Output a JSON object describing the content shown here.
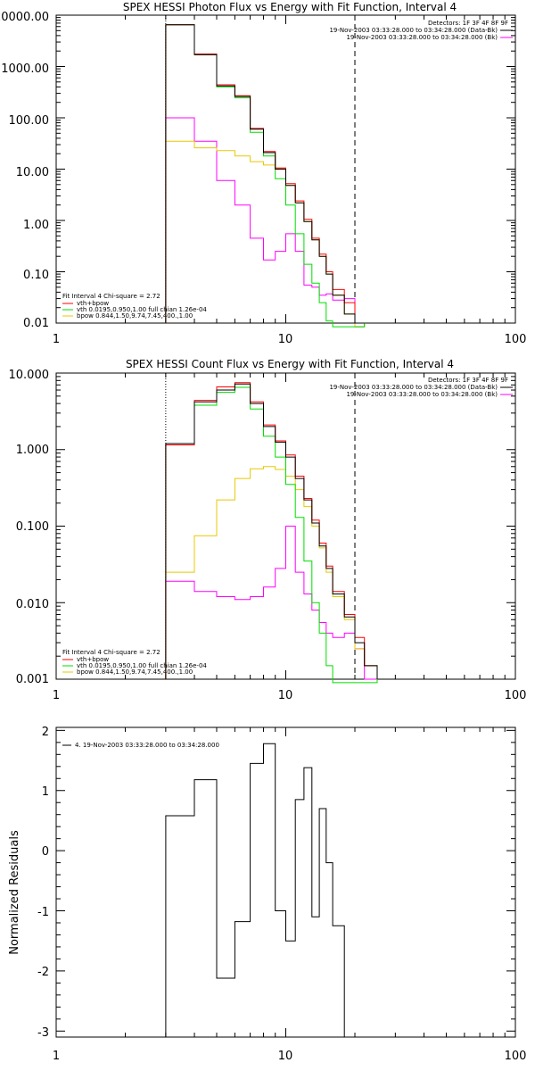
{
  "colors": {
    "total": "#000000",
    "data": "#ff0000",
    "vth": "#00dd00",
    "bpow": "#e8c800",
    "bk": "#ff00ff"
  },
  "chart_data": [
    {
      "type": "line",
      "scale": "log-log",
      "title": "SPEX HESSI Photon Flux vs Energy with Fit Function, Interval 4",
      "xlim": [
        1,
        100
      ],
      "ylim": [
        0.01,
        10000
      ],
      "x_ticks": [
        "1",
        "10",
        "100"
      ],
      "y_ticks": [
        "0.01",
        "0.10",
        "1.00",
        "10.00",
        "100.00",
        "1000.00",
        "10000.00"
      ],
      "header_lines": [
        "Detectors: 1F 3F 4F 8F 9F",
        "19-Nov-2003 03:33:28.000 to 03:34:28.000 (Data-Bk)",
        "19-Nov-2003 03:33:28.000 to 03:34:28.000 (Bk)"
      ],
      "fit_title": "Fit Interval 4    Chi-square = 2.72",
      "legend": [
        "vth+bpow",
        "vth 0.0195,0.950,1.00  full chian 1.26e-04",
        "bpow 0.844,1.50,9.74,7.45,400.,1.00"
      ],
      "vlines": [
        3,
        20
      ],
      "edges": [
        3,
        4,
        5,
        6,
        7,
        8,
        9,
        10,
        11,
        12,
        13,
        14,
        15,
        16,
        18,
        20,
        22
      ],
      "series": [
        {
          "key": "total",
          "values": [
            6500,
            1700,
            420,
            260,
            60,
            21,
            10,
            4.8,
            2.2,
            0.95,
            0.42,
            0.2,
            0.09,
            0.035,
            0.015,
            0.01
          ]
        },
        {
          "key": "data",
          "values": [
            6500,
            1750,
            440,
            270,
            62,
            22,
            10.5,
            5.2,
            2.4,
            1.05,
            0.45,
            0.22,
            0.1,
            0.045,
            0.025,
            0.01
          ]
        },
        {
          "key": "vth",
          "values": [
            6500,
            1700,
            400,
            245,
            52,
            18,
            6.5,
            2.0,
            0.55,
            0.14,
            0.06,
            0.025,
            0.011,
            0.008,
            0.008,
            0.008
          ]
        },
        {
          "key": "bpow",
          "values": [
            35,
            26,
            23,
            18,
            14,
            12,
            10.5,
            4.8,
            2.2,
            0.95,
            0.42,
            0.2,
            0.09,
            0.035,
            0.015,
            0.008
          ]
        },
        {
          "key": "bk",
          "values": [
            100,
            35,
            6,
            2,
            0.45,
            0.17,
            0.25,
            0.55,
            0.25,
            0.055,
            0.05,
            0.035,
            0.037,
            0.028,
            0.03,
            0.008
          ]
        }
      ]
    },
    {
      "type": "line",
      "scale": "log-log",
      "title": "SPEX HESSI Count Flux vs Energy with Fit Function, Interval 4",
      "xlim": [
        1,
        100
      ],
      "ylim": [
        0.001,
        10
      ],
      "x_ticks": [
        "1",
        "10",
        "100"
      ],
      "y_ticks": [
        "0.001",
        "0.010",
        "0.100",
        "1.000",
        "10.000"
      ],
      "header_lines": [
        "Detectors: 1F 3F 4F 8F 9F",
        "19-Nov-2003 03:33:28.000 to 03:34:28.000 (Data-Bk)",
        "19-Nov-2003 03:33:28.000 to 03:34:28.000 (Bk)"
      ],
      "fit_title": "Fit Interval 4    Chi-square = 2.72",
      "legend": [
        "vth+bpow",
        "vth 0.0195,0.950,1.00  full chian 1.26e-04",
        "bpow 0.844,1.50,9.74,7.45,400.,1.00"
      ],
      "vlines": [
        3,
        20
      ],
      "edges": [
        3,
        4,
        5,
        6,
        7,
        8,
        9,
        10,
        11,
        12,
        13,
        14,
        15,
        16,
        18,
        20,
        22,
        25
      ],
      "series": [
        {
          "key": "total",
          "values": [
            1.2,
            4.2,
            6.0,
            7.2,
            4.0,
            2.0,
            1.25,
            0.8,
            0.42,
            0.22,
            0.11,
            0.055,
            0.028,
            0.013,
            0.0065,
            0.003,
            0.0015
          ]
        },
        {
          "key": "data",
          "values": [
            1.15,
            4.4,
            6.6,
            7.5,
            4.2,
            2.1,
            1.3,
            0.85,
            0.45,
            0.23,
            0.12,
            0.06,
            0.03,
            0.014,
            0.007,
            0.0035,
            0.0015
          ]
        },
        {
          "key": "vth",
          "values": [
            1.15,
            3.8,
            5.6,
            6.5,
            3.4,
            1.5,
            0.8,
            0.35,
            0.13,
            0.035,
            0.01,
            0.004,
            0.0015,
            0.0009,
            0.0009,
            0.0009,
            0.0009
          ]
        },
        {
          "key": "bpow",
          "values": [
            0.025,
            0.075,
            0.22,
            0.42,
            0.56,
            0.6,
            0.55,
            0.45,
            0.3,
            0.18,
            0.1,
            0.052,
            0.025,
            0.012,
            0.006,
            0.0025,
            0.0015
          ]
        },
        {
          "key": "bk",
          "values": [
            0.019,
            0.014,
            0.012,
            0.011,
            0.012,
            0.016,
            0.028,
            0.1,
            0.025,
            0.013,
            0.008,
            0.0055,
            0.004,
            0.0035,
            0.004,
            0.0025,
            0.001
          ]
        }
      ]
    },
    {
      "type": "line",
      "scale": "log-linear",
      "title": "",
      "xlim": [
        1,
        100
      ],
      "ylim": [
        -3.1,
        2.05
      ],
      "x_ticks": [
        "1",
        "10",
        "100"
      ],
      "y_ticks": [
        "-3",
        "-2",
        "-1",
        "0",
        "1",
        "2"
      ],
      "ylabel": "Normalized Residuals",
      "legend": [
        "4. 19-Nov-2003 03:33:28.000 to 03:34:28.000"
      ],
      "edges": [
        3,
        4,
        5,
        6,
        7,
        8,
        9,
        10,
        11,
        12,
        13,
        14,
        15,
        16,
        18,
        20
      ],
      "series": [
        {
          "key": "total",
          "values": [
            0.58,
            1.18,
            -2.12,
            -1.18,
            1.45,
            1.78,
            -1.0,
            -1.5,
            0.85,
            1.38,
            -1.1,
            0.7,
            -0.2,
            -1.25,
            -3.1
          ]
        }
      ]
    }
  ]
}
